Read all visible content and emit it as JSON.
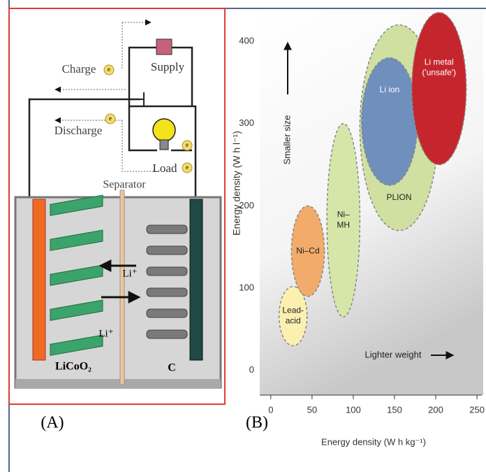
{
  "panel_a": {
    "label": "(A)",
    "charge": "Charge",
    "discharge": "Discharge",
    "supply": "Supply",
    "load": "Load",
    "separator": "Separator",
    "cathode": "LiCoO₂",
    "anode": "C",
    "ion_top": "Li⁺",
    "ion_bottom": "Li⁺",
    "electron": "e"
  },
  "panel_b": {
    "label": "(B)"
  },
  "chart_data": {
    "type": "ellipse",
    "x_label": "Energy density (W h kg⁻¹)",
    "y_label": "Energy density (W h l⁻¹)",
    "annotations": [
      "Smaller size",
      "Lighter weight"
    ],
    "xlim": [
      -10,
      255
    ],
    "ylim": [
      -30,
      440
    ],
    "xticks": [
      0,
      50,
      100,
      150,
      200,
      250
    ],
    "yticks": [
      0,
      100,
      200,
      300,
      400
    ],
    "series": [
      {
        "label": [
          "Lead-",
          "acid"
        ],
        "color": "#fbf0b0",
        "x": [
          10,
          44
        ],
        "y": [
          30,
          102
        ]
      },
      {
        "label": [
          "Ni–Cd"
        ],
        "color": "#f2ab6a",
        "x": [
          25,
          65
        ],
        "y": [
          90,
          200
        ]
      },
      {
        "label": [
          "Ni–",
          "MH"
        ],
        "color": "#d6e6a8",
        "x": [
          68,
          108
        ],
        "y": [
          65,
          300
        ]
      },
      {
        "label": [
          "PLION"
        ],
        "color": "#cfe0a0",
        "x": [
          108,
          203
        ],
        "y": [
          170,
          420
        ]
      },
      {
        "label": [
          "Li ion"
        ],
        "color": "#6f8fbd",
        "x": [
          110,
          178
        ],
        "y": [
          225,
          380
        ]
      },
      {
        "label": [
          "Li metal",
          "('unsafe')"
        ],
        "color": "#c5262e",
        "x": [
          171,
          237
        ],
        "y": [
          250,
          435
        ]
      }
    ]
  }
}
